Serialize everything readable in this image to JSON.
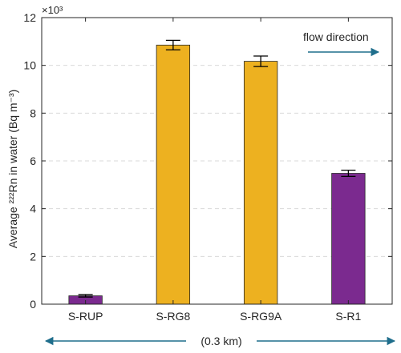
{
  "chart_data": {
    "type": "bar",
    "categories": [
      "S-RUP",
      "S-RG8",
      "S-RG9A",
      "S-R1"
    ],
    "values": [
      0.35,
      10.85,
      10.17,
      5.48
    ],
    "errors": [
      0.05,
      0.2,
      0.22,
      0.13
    ],
    "bar_colors": [
      "#7b2a8f",
      "#edb120",
      "#edb120",
      "#7b2a8f"
    ],
    "ylabel": "Average ²²²Rn in water (Bq m⁻³)",
    "exponent_label": "×10³",
    "ylim": [
      0,
      12
    ],
    "yticks": [
      0,
      2,
      4,
      6,
      8,
      10,
      12
    ],
    "grid": true,
    "annotations": {
      "flow_direction": "flow direction",
      "distance": "(0.3 km)"
    },
    "arrow_color": "#1f6e8c"
  }
}
